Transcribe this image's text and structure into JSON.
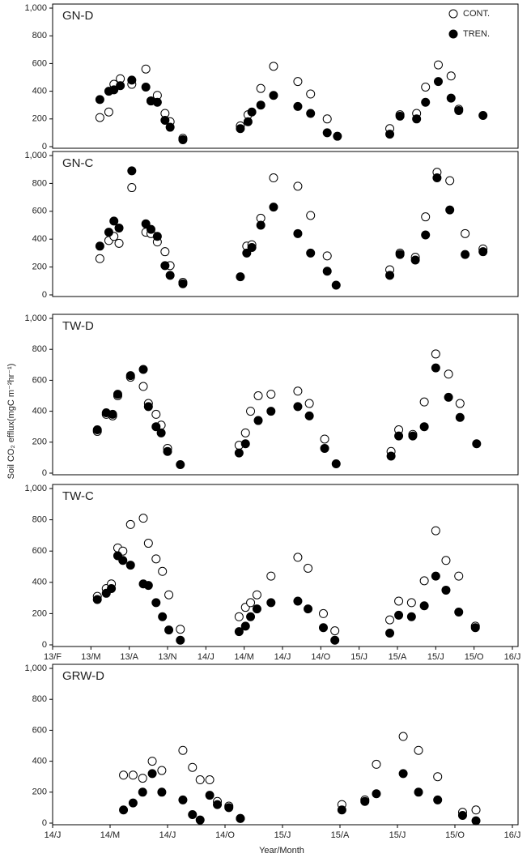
{
  "y_label": "Soil CO₂ efflux(mgC m⁻²hr⁻¹)",
  "x_label": "Year/Month",
  "chart_data": [
    {
      "type": "scatter",
      "title": "GN-D",
      "legend": "upper right",
      "x": [
        4.7,
        5.4,
        5.8,
        6.3,
        7.2,
        8.3,
        8.7,
        9.2,
        9.8,
        10.2,
        11.2,
        15.7,
        16.3,
        16.6,
        17.3,
        18.3,
        20.2,
        21.2,
        22.5,
        23.3,
        27.4,
        28.2,
        29.5,
        30.2,
        31.2,
        32.2,
        32.8,
        34.7
      ],
      "series": [
        {
          "name": "CONT.",
          "color": "#ffffff",
          "values": [
            210,
            250,
            450,
            490,
            450,
            560,
            330,
            370,
            240,
            180,
            60,
            150,
            230,
            null,
            420,
            580,
            470,
            380,
            200,
            null,
            130,
            230,
            240,
            430,
            590,
            510,
            270,
            null
          ]
        },
        {
          "name": "TREN.",
          "color": "#000000",
          "values": [
            340,
            400,
            410,
            440,
            480,
            430,
            330,
            320,
            190,
            140,
            50,
            130,
            180,
            250,
            300,
            370,
            290,
            240,
            100,
            75,
            90,
            220,
            200,
            320,
            470,
            350,
            260,
            225
          ]
        }
      ],
      "xlim": [
        1,
        37
      ],
      "ylim": [
        0,
        1000
      ],
      "yticks": [
        0,
        200,
        400,
        600,
        800,
        {
          "value": 1000,
          "label": "1,000"
        }
      ]
    },
    {
      "type": "scatter",
      "title": "GN-C",
      "x": [
        4.7,
        5.4,
        5.8,
        6.2,
        7.2,
        8.3,
        8.7,
        9.2,
        9.8,
        10.2,
        11.2,
        15.7,
        16.2,
        16.6,
        17.3,
        18.3,
        20.2,
        21.2,
        22.5,
        23.2,
        27.4,
        28.2,
        29.4,
        30.2,
        31.1,
        32.1,
        33.3,
        34.7
      ],
      "series": [
        {
          "color": "#ffffff",
          "values": [
            260,
            390,
            420,
            370,
            770,
            450,
            440,
            380,
            310,
            210,
            90,
            null,
            350,
            360,
            550,
            840,
            780,
            570,
            280,
            null,
            180,
            300,
            270,
            560,
            880,
            820,
            440,
            330
          ]
        },
        {
          "color": "#000000",
          "values": [
            350,
            450,
            530,
            480,
            890,
            510,
            470,
            420,
            210,
            140,
            80,
            130,
            300,
            340,
            500,
            630,
            440,
            300,
            170,
            70,
            140,
            290,
            250,
            430,
            840,
            610,
            290,
            310
          ]
        }
      ],
      "xlim": [
        1,
        37
      ],
      "ylim": [
        0,
        1000
      ],
      "yticks": [
        0,
        200,
        400,
        600,
        800,
        {
          "value": 1000,
          "label": "1,000"
        }
      ]
    },
    {
      "type": "scatter",
      "title": "TW-D",
      "x": [
        4.5,
        5.2,
        5.7,
        6.1,
        7.1,
        8.1,
        8.5,
        9.1,
        9.5,
        10.0,
        11.0,
        15.6,
        16.1,
        16.5,
        17.1,
        18.1,
        20.2,
        21.1,
        22.3,
        23.2,
        27.5,
        28.1,
        29.2,
        30.1,
        31.0,
        32.0,
        32.9,
        34.2
      ],
      "series": [
        {
          "color": "#ffffff",
          "values": [
            270,
            380,
            370,
            500,
            620,
            560,
            450,
            380,
            310,
            160,
            null,
            180,
            260,
            400,
            500,
            510,
            530,
            450,
            220,
            null,
            140,
            280,
            250,
            460,
            770,
            640,
            450,
            null
          ]
        },
        {
          "color": "#000000",
          "values": [
            280,
            390,
            380,
            510,
            630,
            670,
            430,
            300,
            260,
            140,
            55,
            130,
            190,
            null,
            340,
            400,
            430,
            370,
            160,
            60,
            110,
            240,
            240,
            300,
            680,
            490,
            360,
            190
          ]
        }
      ],
      "xlim": [
        1,
        37
      ],
      "ylim": [
        0,
        1000
      ],
      "yticks": [
        0,
        200,
        400,
        600,
        800,
        {
          "value": 1000,
          "label": "1,000"
        }
      ]
    },
    {
      "type": "scatter",
      "title": "TW-C",
      "x": [
        4.5,
        5.2,
        5.6,
        6.1,
        6.5,
        7.1,
        8.1,
        8.5,
        9.1,
        9.6,
        10.1,
        11.0,
        15.6,
        16.1,
        16.5,
        17.0,
        18.1,
        20.2,
        21.0,
        22.2,
        23.1,
        27.4,
        28.1,
        29.1,
        30.1,
        31.0,
        31.8,
        32.8,
        34.1
      ],
      "series": [
        {
          "color": "#ffffff",
          "values": [
            310,
            360,
            390,
            620,
            600,
            770,
            810,
            650,
            550,
            470,
            320,
            100,
            180,
            240,
            270,
            320,
            440,
            560,
            490,
            200,
            90,
            160,
            280,
            270,
            410,
            730,
            540,
            440,
            120
          ]
        },
        {
          "color": "#000000",
          "values": [
            290,
            330,
            360,
            570,
            540,
            510,
            390,
            380,
            270,
            180,
            95,
            30,
            85,
            120,
            180,
            230,
            270,
            280,
            230,
            110,
            30,
            75,
            190,
            180,
            250,
            440,
            350,
            210,
            110
          ]
        }
      ],
      "xlim": [
        1,
        37
      ],
      "ylim": [
        0,
        1000
      ],
      "yticks": [
        0,
        200,
        400,
        600,
        800,
        {
          "value": 1000,
          "label": "1,000"
        }
      ],
      "xticks": [
        {
          "value": 1,
          "label": "13/F"
        },
        {
          "value": 4,
          "label": "13/M"
        },
        {
          "value": 7,
          "label": "13/A"
        },
        {
          "value": 10,
          "label": "13/N"
        },
        {
          "value": 13,
          "label": "14/J"
        },
        {
          "value": 16,
          "label": "14/M"
        },
        {
          "value": 19,
          "label": "14/J"
        },
        {
          "value": 22,
          "label": "14/O"
        },
        {
          "value": 25,
          "label": "15/J"
        },
        {
          "value": 28,
          "label": "15/A"
        },
        {
          "value": 31,
          "label": "15/J"
        },
        {
          "value": 34,
          "label": "15/O"
        },
        {
          "value": 37,
          "label": "16/J"
        }
      ]
    },
    {
      "type": "scatter",
      "title": "GRW-D",
      "x": [
        16.7,
        17.2,
        17.7,
        18.2,
        18.7,
        19.8,
        20.3,
        20.7,
        21.2,
        21.6,
        22.2,
        22.8,
        28.1,
        29.3,
        29.9,
        31.3,
        32.1,
        33.1,
        34.4,
        35.1
      ],
      "series": [
        {
          "color": "#ffffff",
          "values": [
            310,
            310,
            290,
            400,
            340,
            470,
            360,
            280,
            280,
            140,
            110,
            30,
            120,
            150,
            380,
            560,
            470,
            300,
            70,
            85
          ]
        },
        {
          "color": "#000000",
          "values": [
            85,
            130,
            200,
            320,
            200,
            150,
            55,
            20,
            180,
            120,
            100,
            30,
            85,
            140,
            190,
            320,
            200,
            150,
            50,
            15
          ]
        }
      ],
      "xlim": [
        13,
        37
      ],
      "ylim": [
        0,
        1000
      ],
      "yticks": [
        0,
        200,
        400,
        600,
        800,
        {
          "value": 1000,
          "label": "1,000"
        }
      ],
      "xticks": [
        {
          "value": 13,
          "label": "14/J"
        },
        {
          "value": 16,
          "label": "14/M"
        },
        {
          "value": 19,
          "label": "14/J"
        },
        {
          "value": 22,
          "label": "14/O"
        },
        {
          "value": 25,
          "label": "15/J"
        },
        {
          "value": 28,
          "label": "15/A"
        },
        {
          "value": 31,
          "label": "15/J"
        },
        {
          "value": 34,
          "label": "15/O"
        },
        {
          "value": 37,
          "label": "16/J"
        }
      ]
    }
  ]
}
